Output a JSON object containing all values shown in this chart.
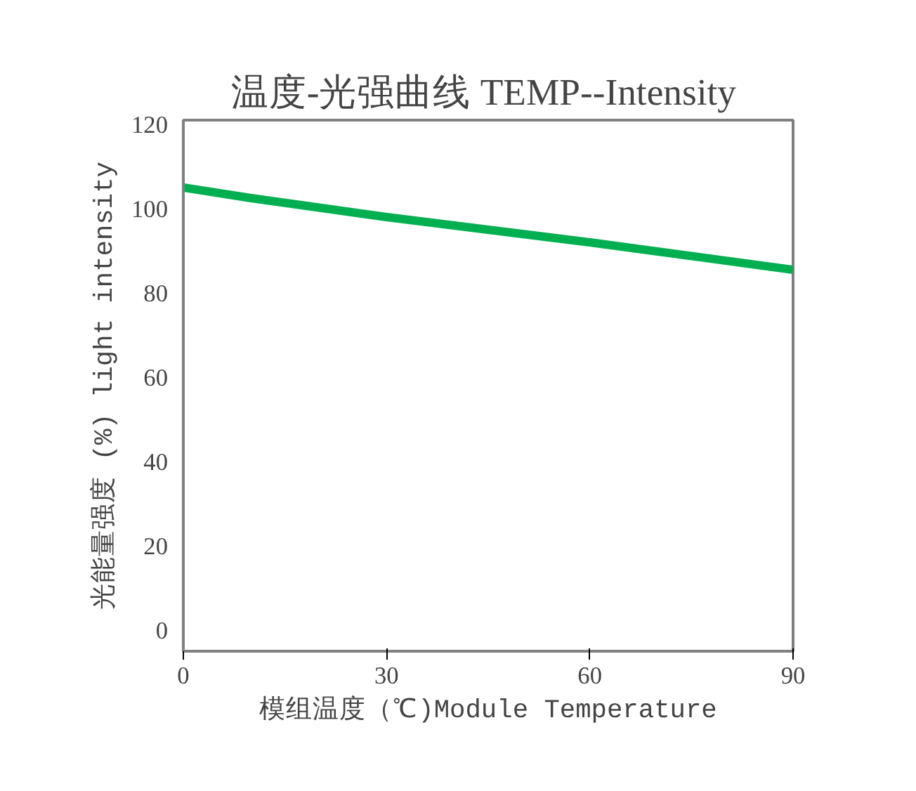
{
  "chart_data": {
    "type": "line",
    "title": "温度-光强曲线  TEMP--Intensity",
    "xlabel": "模组温度（℃)Module Temperature",
    "ylabel": "光能量强度 (%) light intensity",
    "x": [
      0,
      10,
      30,
      60,
      90
    ],
    "series": [
      {
        "color": "#00b050",
        "values": [
          105,
          102.5,
          98,
          92,
          85.5
        ]
      }
    ],
    "xlim": [
      0,
      90
    ],
    "xticks": [
      0,
      30,
      60,
      90
    ],
    "ylim": [
      -5,
      121
    ],
    "yticks": [
      0,
      20,
      40,
      60,
      80,
      100,
      120
    ],
    "grid": false,
    "line_style": "solid",
    "marker": "none"
  }
}
